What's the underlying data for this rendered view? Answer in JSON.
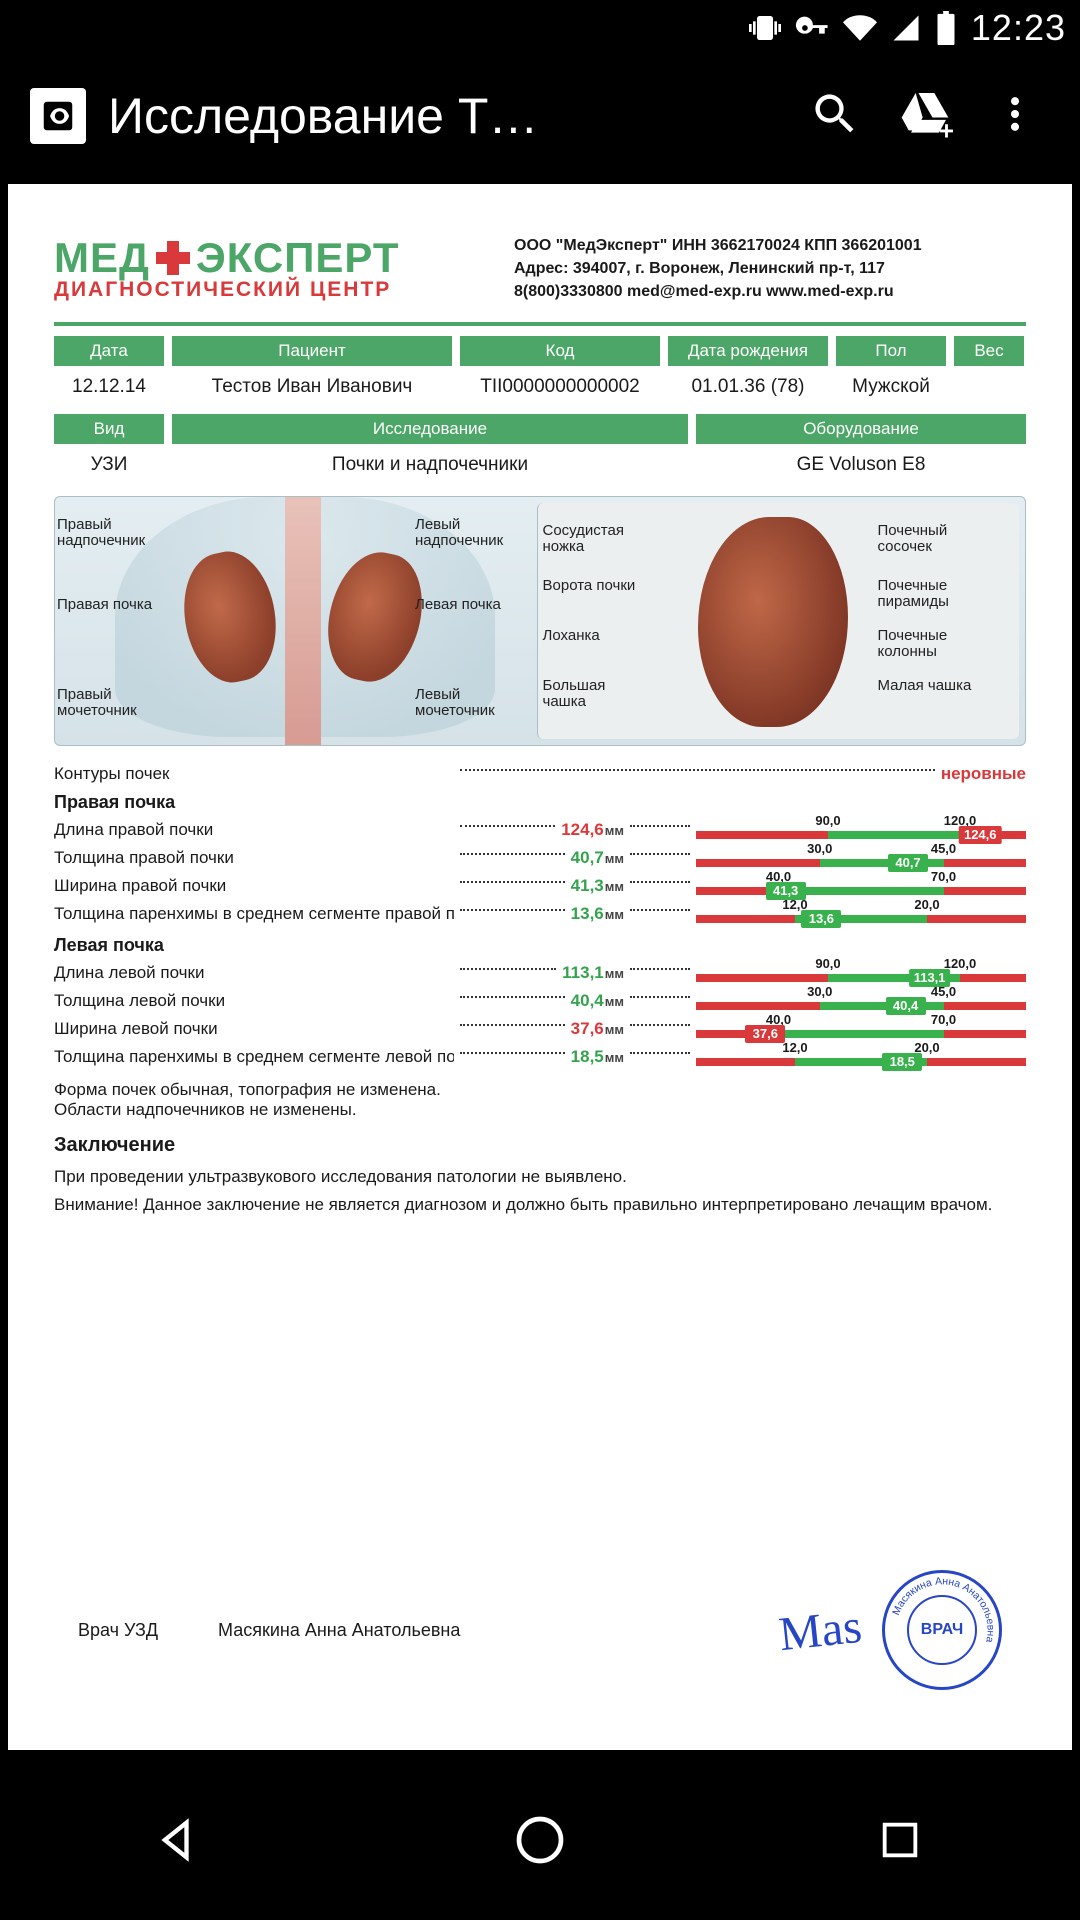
{
  "status_bar": {
    "time": "12:23"
  },
  "app_bar": {
    "title": "Исследование Т…"
  },
  "document": {
    "logo": {
      "line1a": "МЕД",
      "line1b": "ЭКСПЕРТ",
      "line2": "ДИАГНОСТИЧЕСКИЙ ЦЕНТР"
    },
    "org_info": {
      "l1": "ООО \"МедЭксперт\"  ИНН 3662170024  КПП 366201001",
      "l2": "Адрес: 394007, г. Воронеж, Ленинский пр-т, 117",
      "l3": "8(800)3330800  med@med-exp.ru  www.med-exp.ru"
    },
    "table1": {
      "headers": [
        "Дата",
        "Пациент",
        "Код",
        "Дата рождения",
        "Пол",
        "Вес"
      ],
      "values": [
        "12.12.14",
        "Тестов Иван Иванович",
        "ТII0000000000002",
        "01.01.36 (78)",
        "Мужской",
        ""
      ]
    },
    "table2": {
      "headers": [
        "Вид",
        "Исследование",
        "Оборудование"
      ],
      "values": [
        "УЗИ",
        "Почки и надпочечники",
        "GE Voluson E8"
      ]
    },
    "anatomy_labels": {
      "left": [
        "Правый надпочечник",
        "Правая почка",
        "Правый мочеточник"
      ],
      "mid": [
        "Левый надпочечник",
        "Левая почка",
        "Левый мочеточник"
      ],
      "right_l": [
        "Сосудистая ножка",
        "Ворота почки",
        "Лоханка",
        "Большая чашка"
      ],
      "right_r": [
        "Почечный сосочек",
        "Почечные пирамиды",
        "Почечные колонны",
        "Малая чашка"
      ]
    },
    "first_line": {
      "label": "Контуры почек",
      "value": "неровные",
      "value_color": "red"
    },
    "sections": [
      {
        "title": "Правая почка",
        "rows": [
          {
            "label": "Длина правой почки",
            "value": "124,6",
            "value_color": "red",
            "range": {
              "min": 60,
              "lo": 90,
              "hi": 120,
              "max": 135
            },
            "marker": {
              "val": 124.6,
              "text": "124,6",
              "ok": false
            }
          },
          {
            "label": "Толщина правой почки",
            "value": "40,7",
            "value_color": "green",
            "range": {
              "min": 15,
              "lo": 30,
              "hi": 45,
              "max": 55
            },
            "marker": {
              "val": 40.7,
              "text": "40,7",
              "ok": true
            }
          },
          {
            "label": "Ширина правой почки",
            "value": "41,3",
            "value_color": "green",
            "range": {
              "min": 25,
              "lo": 40,
              "hi": 70,
              "max": 85
            },
            "marker": {
              "val": 41.3,
              "text": "41,3",
              "ok": true
            }
          },
          {
            "label": "Толщина паренхимы в среднем сегменте правой почки",
            "value": "13,6",
            "value_color": "green",
            "range": {
              "min": 6,
              "lo": 12,
              "hi": 20,
              "max": 26
            },
            "marker": {
              "val": 13.6,
              "text": "13,6",
              "ok": true
            }
          }
        ]
      },
      {
        "title": "Левая почка",
        "rows": [
          {
            "label": "Длина левой почки",
            "value": "113,1",
            "value_color": "green",
            "range": {
              "min": 60,
              "lo": 90,
              "hi": 120,
              "max": 135
            },
            "marker": {
              "val": 113.1,
              "text": "113,1",
              "ok": true
            }
          },
          {
            "label": "Толщина левой почки",
            "value": "40,4",
            "value_color": "green",
            "range": {
              "min": 15,
              "lo": 30,
              "hi": 45,
              "max": 55
            },
            "marker": {
              "val": 40.4,
              "text": "40,4",
              "ok": true
            }
          },
          {
            "label": "Ширина левой почки",
            "value": "37,6",
            "value_color": "red",
            "range": {
              "min": 25,
              "lo": 40,
              "hi": 70,
              "max": 85
            },
            "marker": {
              "val": 37.6,
              "text": "37,6",
              "ok": false
            }
          },
          {
            "label": "Толщина паренхимы в среднем сегменте левой почки",
            "value": "18,5",
            "value_color": "green",
            "range": {
              "min": 6,
              "lo": 12,
              "hi": 20,
              "max": 26
            },
            "marker": {
              "val": 18.5,
              "text": "18,5",
              "ok": true
            }
          }
        ]
      }
    ],
    "free_text": [
      "Форма почек обычная, топография не изменена.",
      "Области надпочечников не изменены."
    ],
    "conclusion": {
      "title": "Заключение",
      "lines": [
        "При проведении ультразвукового исследования патологии не выявлено.",
        "Внимание! Данное заключение не является диагнозом и должно быть правильно интерпретировано лечащим врачом."
      ]
    },
    "signature": {
      "role": "Врач УЗД",
      "name": "Масякина Анна Анатольевна",
      "sign": "Mas",
      "stamp_center": "ВРАЧ",
      "stamp_ring": "Масякина Анна Анатольевна"
    },
    "unit_label": "мм",
    "colors": {
      "brand_green": "#4ca667",
      "brand_red": "#d9393a",
      "ok_green": "#39b24e",
      "bad_red": "#d9393a",
      "stamp_blue": "#2746c5"
    }
  }
}
